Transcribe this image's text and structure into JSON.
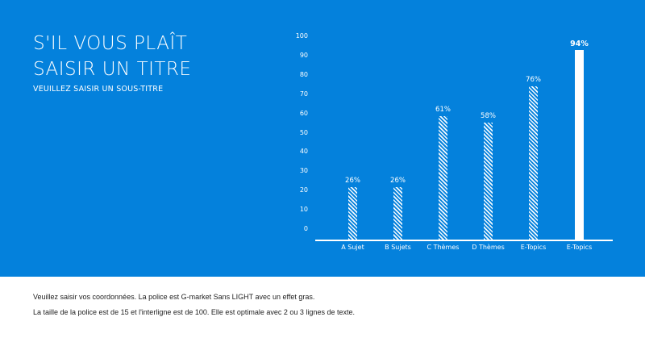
{
  "slide": {
    "title_line1": "S'IL VOUS PLAÎT",
    "title_line2": "SAISIR UN TITRE",
    "subtitle": "VEUILLEZ SAISIR UN SOUS-TITRE",
    "footer_line1": "Veuillez saisir vos coordonnées. La police est G-market Sans LIGHT avec un effet gras.",
    "footer_line2": "La taille de la police est de 15 et l'interligne est de 100. Elle est optimale avec 2 ou 3 lignes de texte."
  },
  "colors": {
    "background": "#0481dc",
    "bar": "#ffffff",
    "footer_bg": "#ffffff"
  },
  "chart_data": {
    "type": "bar",
    "title": "",
    "xlabel": "",
    "ylabel": "",
    "ylim": [
      0,
      100
    ],
    "yticks": [
      "100",
      "90",
      "80",
      "70",
      "60",
      "50",
      "40",
      "30",
      "20",
      "10",
      "0"
    ],
    "categories": [
      "A Sujet",
      "B Sujets",
      "C Thèmes",
      "D Thèmes",
      "E-Topics",
      "E-Topics"
    ],
    "values": [
      26,
      26,
      61,
      58,
      76,
      94
    ],
    "value_labels": [
      "26%",
      "26%",
      "61%",
      "58%",
      "76%",
      "94%"
    ],
    "styles": [
      "hatched",
      "hatched",
      "hatched",
      "hatched",
      "hatched",
      "solid"
    ],
    "grid": false,
    "legend": null
  }
}
